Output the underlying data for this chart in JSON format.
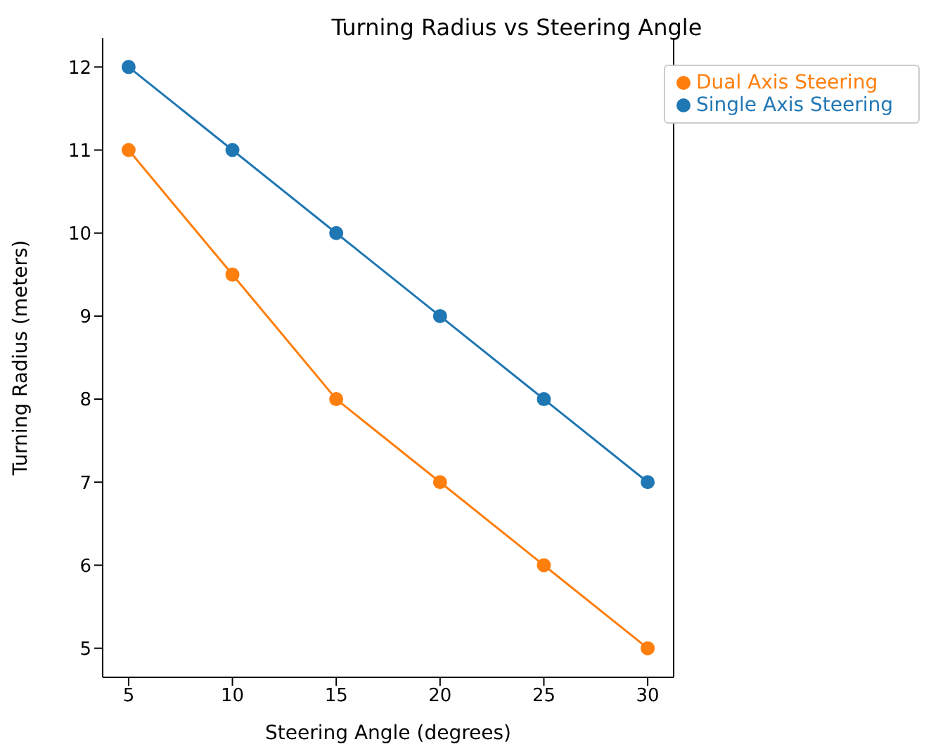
{
  "chart_data": {
    "type": "line",
    "title": "Turning Radius vs Steering Angle",
    "xlabel": "Steering Angle (degrees)",
    "ylabel": "Turning Radius (meters)",
    "x": [
      5,
      10,
      15,
      20,
      25,
      30
    ],
    "series": [
      {
        "name": "Single Axis Steering",
        "color": "#1f77b4",
        "values": [
          12,
          11,
          10,
          9,
          8,
          7
        ]
      },
      {
        "name": "Dual Axis Steering",
        "color": "#ff7f0e",
        "values": [
          11,
          9.5,
          8,
          7,
          6,
          5
        ]
      }
    ],
    "xlim": [
      3.75,
      31.25
    ],
    "xticks": [
      5,
      10,
      15,
      20,
      25,
      30
    ],
    "ylim": [
      4.65,
      12.35
    ],
    "yticks": [
      5,
      6,
      7,
      8,
      9,
      10,
      11,
      12
    ],
    "grid": false,
    "legend": "top right",
    "marker": "circle",
    "line_style": "solid"
  }
}
